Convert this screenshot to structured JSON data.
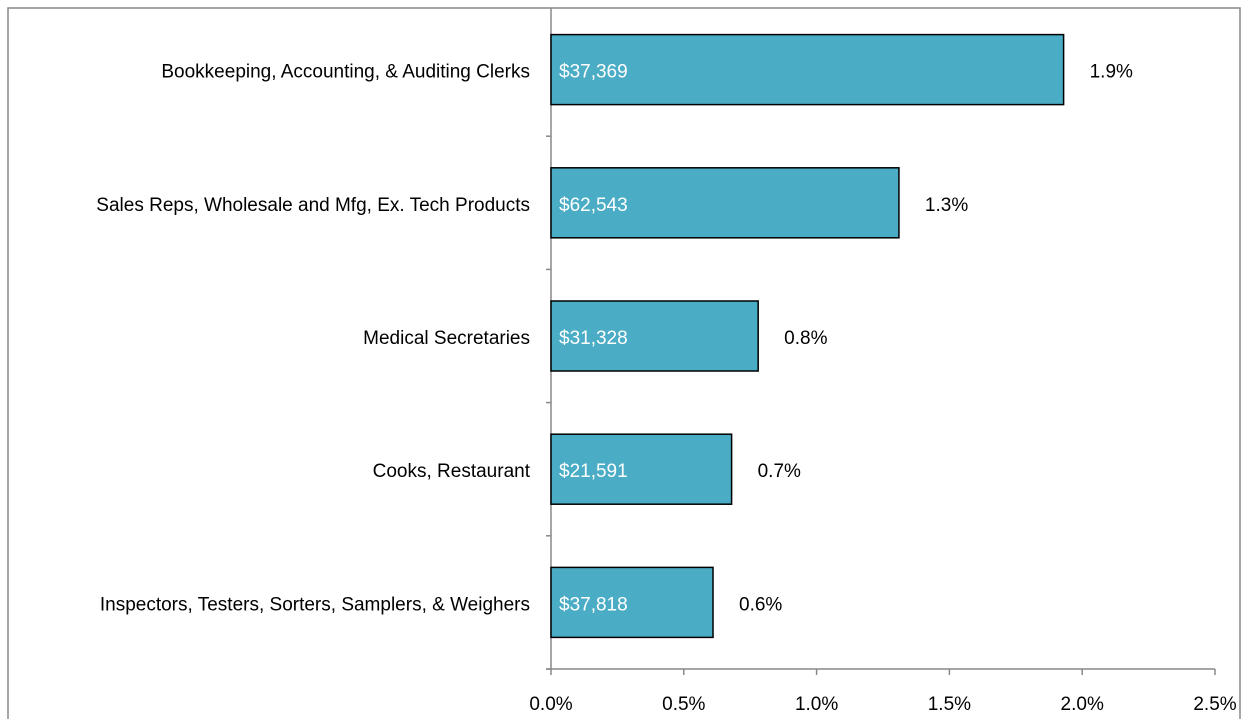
{
  "chart_data": {
    "type": "bar",
    "orientation": "horizontal",
    "categories": [
      "Bookkeeping, Accounting, & Auditing Clerks",
      "Sales Reps, Wholesale and Mfg, Ex. Tech Products",
      "Medical Secretaries",
      "Cooks, Restaurant",
      "Inspectors, Testers, Sorters, Samplers, & Weighers"
    ],
    "values": [
      1.93,
      1.31,
      0.78,
      0.68,
      0.61
    ],
    "value_labels": [
      "1.9%",
      "1.3%",
      "0.8%",
      "0.7%",
      "0.6%"
    ],
    "salaries": [
      37369,
      62543,
      31328,
      21591,
      37818
    ],
    "salary_labels": [
      "$37,369",
      "$62,543",
      "$31,328",
      "$21,591",
      "$37,818"
    ],
    "color": "#4bacc6",
    "xlim": [
      0,
      2.5
    ],
    "xticks": [
      {
        "value": 0,
        "label": "0.0%"
      },
      {
        "value": 0.5,
        "label": "0.5%"
      },
      {
        "value": 1,
        "label": "1.0%"
      },
      {
        "value": 1.5,
        "label": "1.5%"
      },
      {
        "value": 2,
        "label": "2.0%"
      },
      {
        "value": 2.5,
        "label": "2.5%"
      }
    ]
  }
}
